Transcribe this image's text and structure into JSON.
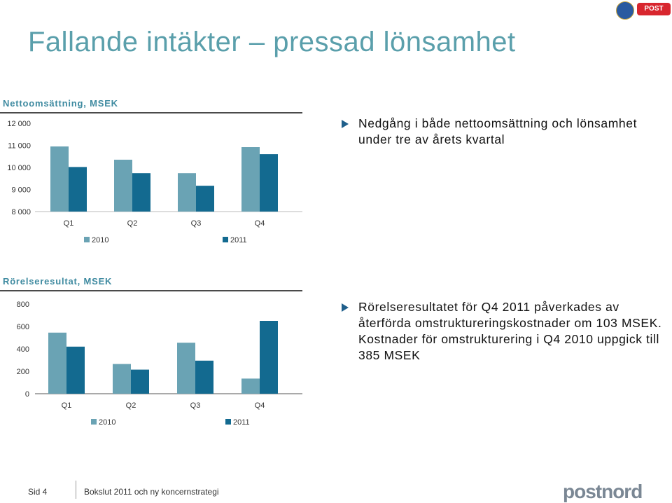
{
  "title": "Fallande intäkter – pressad lönsamhet",
  "colors": {
    "y2010": "#6aa3b4",
    "y2011": "#136a90",
    "title": "#5a9fab"
  },
  "chart_data": [
    {
      "type": "bar",
      "title": "Nettoomsättning, MSEK",
      "categories": [
        "Q1",
        "Q2",
        "Q3",
        "Q4"
      ],
      "yticks": [
        "12 000",
        "11 000",
        "10 000",
        "9 000",
        "8 000"
      ],
      "ylim": [
        8000,
        12000
      ],
      "series": [
        {
          "name": "2010",
          "values": [
            10950,
            10350,
            9740,
            10920
          ]
        },
        {
          "name": "2011",
          "values": [
            10020,
            9740,
            9170,
            10600
          ]
        }
      ]
    },
    {
      "type": "bar",
      "title": "Rörelseresultat, MSEK",
      "categories": [
        "Q1",
        "Q2",
        "Q3",
        "Q4"
      ],
      "yticks": [
        "800",
        "600",
        "400",
        "200",
        "0"
      ],
      "ylim": [
        0,
        800
      ],
      "series": [
        {
          "name": "2010",
          "values": [
            545,
            265,
            455,
            135
          ]
        },
        {
          "name": "2011",
          "values": [
            420,
            215,
            295,
            650
          ]
        }
      ]
    }
  ],
  "bullets": [
    "Nedgång i både nettoomsättning och lönsamhet under tre av årets kvartal",
    "Rörelseresultatet för Q4 2011 påverkades av återförda omstruktureringskostnader om 103 MSEK. Kostnader för omstrukturering i Q4 2010 uppgick till 385 MSEK"
  ],
  "footer": {
    "page": "Sid 4",
    "subtitle": "Bokslut 2011 och ny koncernstrategi",
    "logo": "postnord",
    "badge": "POST"
  }
}
